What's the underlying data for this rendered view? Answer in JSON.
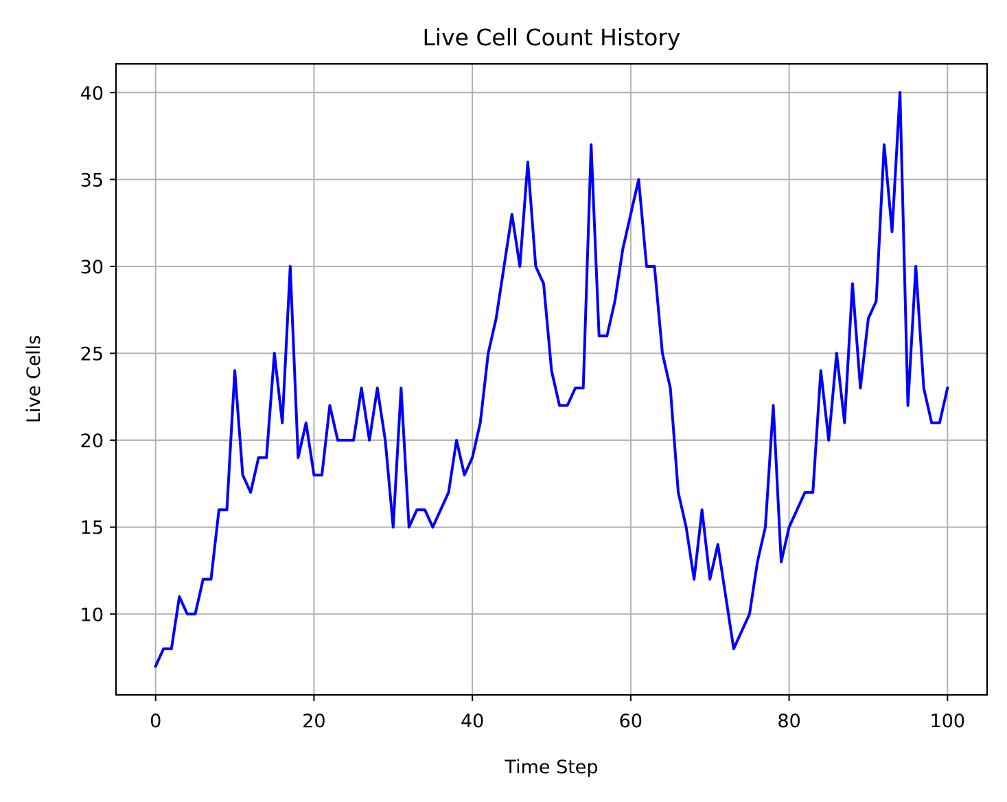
{
  "chart_data": {
    "type": "line",
    "title": "Live Cell Count History",
    "xlabel": "Time Step",
    "ylabel": "Live Cells",
    "xlim": [
      -5,
      105
    ],
    "ylim": [
      5.35,
      41.65
    ],
    "xticks": [
      0,
      20,
      40,
      60,
      80,
      100
    ],
    "yticks": [
      10,
      15,
      20,
      25,
      30,
      35,
      40
    ],
    "grid": true,
    "series": [
      {
        "color": "#0000ff",
        "x": [
          0,
          1,
          2,
          3,
          4,
          5,
          6,
          7,
          8,
          9,
          10,
          11,
          12,
          13,
          14,
          15,
          16,
          17,
          18,
          19,
          20,
          21,
          22,
          23,
          24,
          25,
          26,
          27,
          28,
          29,
          30,
          31,
          32,
          33,
          34,
          35,
          36,
          37,
          38,
          39,
          40,
          41,
          42,
          43,
          44,
          45,
          46,
          47,
          48,
          49,
          50,
          51,
          52,
          53,
          54,
          55,
          56,
          57,
          58,
          59,
          60,
          61,
          62,
          63,
          64,
          65,
          66,
          67,
          68,
          69,
          70,
          71,
          72,
          73,
          74,
          75,
          76,
          77,
          78,
          79,
          80,
          81,
          82,
          83,
          84,
          85,
          86,
          87,
          88,
          89,
          90,
          91,
          92,
          93,
          94,
          95,
          96,
          97,
          98,
          99,
          100
        ],
        "values": [
          7,
          8,
          8,
          11,
          10,
          10,
          12,
          12,
          16,
          16,
          24,
          18,
          17,
          19,
          19,
          25,
          21,
          30,
          19,
          21,
          18,
          18,
          22,
          20,
          20,
          20,
          23,
          20,
          23,
          20,
          15,
          23,
          15,
          16,
          16,
          15,
          16,
          17,
          20,
          18,
          19,
          21,
          25,
          27,
          30,
          33,
          30,
          36,
          30,
          29,
          24,
          22,
          22,
          23,
          23,
          37,
          26,
          26,
          28,
          31,
          33,
          35,
          30,
          30,
          25,
          23,
          17,
          15,
          12,
          16,
          12,
          14,
          11,
          8,
          9,
          10,
          13,
          15,
          22,
          13,
          15,
          16,
          17,
          17,
          24,
          20,
          25,
          21,
          29,
          23,
          27,
          28,
          37,
          32,
          40,
          22,
          30,
          23,
          21,
          21,
          23
        ]
      }
    ]
  }
}
